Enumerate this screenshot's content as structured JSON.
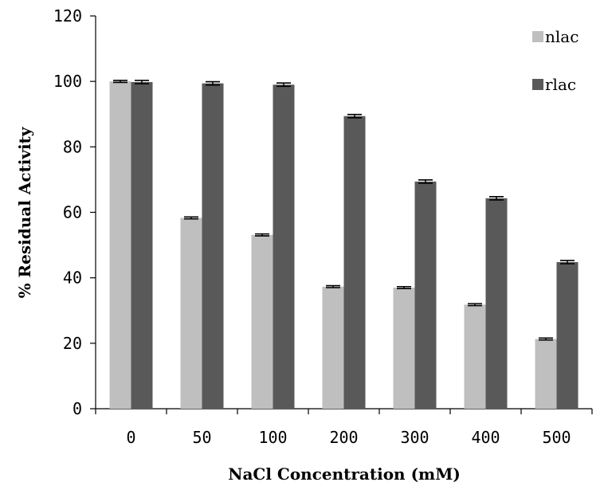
{
  "chart_data": {
    "type": "bar",
    "title": "",
    "xlabel": "NaCl Concentration (mM)",
    "ylabel": "% Residual Activity",
    "categories": [
      "0",
      "50",
      "100",
      "200",
      "300",
      "400",
      "500"
    ],
    "ylim": [
      0,
      120
    ],
    "yticks": [
      0,
      20,
      40,
      60,
      80,
      100,
      120
    ],
    "grid": false,
    "legend_position": "top-right",
    "series": [
      {
        "name": "nlac",
        "color": "#bfbfbf",
        "values": [
          100,
          58.3,
          53.1,
          37.3,
          37.0,
          31.8,
          21.3
        ],
        "errors": [
          0.3,
          0.3,
          0.3,
          0.3,
          0.3,
          0.3,
          0.3
        ]
      },
      {
        "name": "rlac",
        "color": "#595959",
        "values": [
          99.8,
          99.4,
          99.0,
          89.4,
          69.4,
          64.3,
          44.8
        ],
        "errors": [
          0.5,
          0.5,
          0.5,
          0.5,
          0.5,
          0.5,
          0.5
        ]
      }
    ]
  }
}
